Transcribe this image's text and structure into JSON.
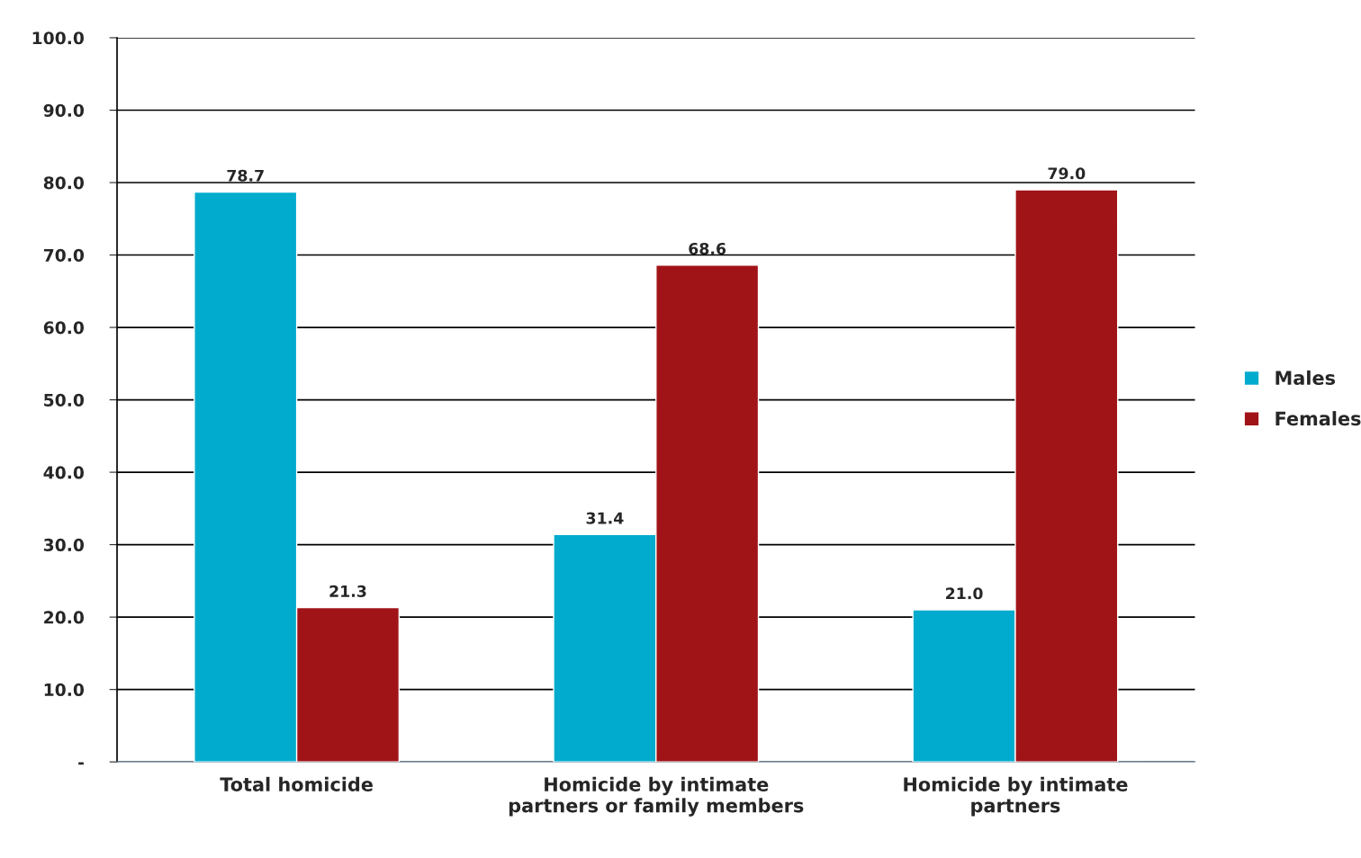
{
  "chart_data": {
    "type": "bar",
    "categories": [
      "Total homicide",
      "Homicide by intimate\npartners or family members",
      "Homicide by intimate\npartners"
    ],
    "series": [
      {
        "name": "Males",
        "color": "#00abcd",
        "values": [
          78.7,
          31.4,
          21.0
        ]
      },
      {
        "name": "Females",
        "color": "#a01418",
        "values": [
          21.3,
          68.6,
          79.0
        ]
      }
    ],
    "ylim": [
      0,
      100
    ],
    "yticks": [
      {
        "value": 0,
        "label": "-"
      },
      {
        "value": 10,
        "label": "10.0"
      },
      {
        "value": 20,
        "label": "20.0"
      },
      {
        "value": 30,
        "label": "30.0"
      },
      {
        "value": 40,
        "label": "40.0"
      },
      {
        "value": 50,
        "label": "50.0"
      },
      {
        "value": 60,
        "label": "60.0"
      },
      {
        "value": 70,
        "label": "70.0"
      },
      {
        "value": 80,
        "label": "80.0"
      },
      {
        "value": 90,
        "label": "90.0"
      },
      {
        "value": 100,
        "label": "100.0"
      }
    ],
    "value_labels": [
      [
        "78.7",
        "31.4",
        "21.0"
      ],
      [
        "21.3",
        "68.6",
        "79.0"
      ]
    ],
    "grid": "y",
    "legend": "right"
  }
}
